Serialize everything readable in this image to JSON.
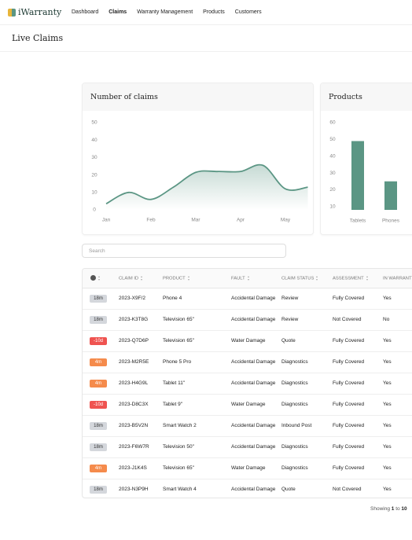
{
  "nav": {
    "brand": "iWarranty",
    "links": [
      "Dashboard",
      "Claims",
      "Warranty Management",
      "Products",
      "Customers"
    ]
  },
  "page_title": "Live Claims",
  "chart_data": [
    {
      "type": "line",
      "title": "Number of claims",
      "categories": [
        "Jan",
        null,
        "Feb",
        null,
        "Mar",
        null,
        "Apr",
        null,
        "May",
        null
      ],
      "values": [
        3.5,
        10,
        6,
        13,
        21.5,
        22,
        22,
        25.5,
        12,
        13
      ],
      "color": "#5b9684",
      "ylim": [
        0,
        50
      ],
      "yticks": [
        0,
        10,
        20,
        30,
        40,
        50
      ]
    },
    {
      "type": "bar",
      "title": "Products",
      "categories": [
        "Tablets",
        "Phones"
      ],
      "values": [
        49,
        25
      ],
      "color": "#5b9684",
      "ylim": [
        8,
        60
      ],
      "yticks": [
        10,
        20,
        30,
        40,
        50,
        60
      ]
    }
  ],
  "search": {
    "placeholder": "Search"
  },
  "table": {
    "columns": [
      "CLAIM ID",
      "PRODUCT",
      "FAULT",
      "CLAIM STATUS",
      "ASSESSMENT",
      "IN WARRANTY"
    ],
    "rows": [
      {
        "badge_color": "#d4d7dc",
        "badge_text_color": "#333333",
        "cells": [
          "18m",
          "2023-X9F/2",
          "Phone 4",
          "Accidental Damage",
          "Review",
          "Fully Covered",
          "Yes"
        ]
      },
      {
        "badge_color": "#d4d7dc",
        "badge_text_color": "#333333",
        "cells": [
          "18m",
          "2023-K3T8G",
          "Television 65\"",
          "Accidental Damage",
          "Review",
          "Not Covered",
          "No"
        ]
      },
      {
        "badge_color": "#ef5350",
        "badge_text_color": "#ffffff",
        "cells": [
          "-10d",
          "2023-Q7D6P",
          "Television 65\"",
          "Water Damage",
          "Quote",
          "Fully Covered",
          "Yes"
        ]
      },
      {
        "badge_color": "#f58b4c",
        "badge_text_color": "#ffffff",
        "cells": [
          "4m",
          "2023-M2R5E",
          "Phone 5 Pro",
          "Accidental Damage",
          "Diagnostics",
          "Fully Covered",
          "Yes"
        ]
      },
      {
        "badge_color": "#f58b4c",
        "badge_text_color": "#ffffff",
        "cells": [
          "4m",
          "2023-H4G9L",
          "Tablet 11\"",
          "Accidental Damage",
          "Diagnostics",
          "Fully Covered",
          "Yes"
        ]
      },
      {
        "badge_color": "#ef5350",
        "badge_text_color": "#ffffff",
        "cells": [
          "-10d",
          "2023-D8C3X",
          "Tablet 9\"",
          "Water Damage",
          "Diagnostics",
          "Fully Covered",
          "Yes"
        ]
      },
      {
        "badge_color": "#d4d7dc",
        "badge_text_color": "#333333",
        "cells": [
          "18m",
          "2023-B5V2N",
          "Smart Watch 2",
          "Accidental Damage",
          "Inbound Post",
          "Fully Covered",
          "Yes"
        ]
      },
      {
        "badge_color": "#d4d7dc",
        "badge_text_color": "#333333",
        "cells": [
          "18m",
          "2023-F6W7R",
          "Television 50\"",
          "Accidental Damage",
          "Diagnostics",
          "Fully Covered",
          "Yes"
        ]
      },
      {
        "badge_color": "#f58b4c",
        "badge_text_color": "#ffffff",
        "cells": [
          "4m",
          "2023-J1K4S",
          "Television 65\"",
          "Water Damage",
          "Diagnostics",
          "Fully Covered",
          "Yes"
        ]
      },
      {
        "badge_color": "#d4d7dc",
        "badge_text_color": "#333333",
        "cells": [
          "18m",
          "2023-N3P9H",
          "Smart Watch 4",
          "Accidental Damage",
          "Quote",
          "Not Covered",
          "Yes"
        ]
      }
    ]
  },
  "footer": {
    "parts": [
      "Showing",
      "1",
      "to",
      "10"
    ]
  }
}
